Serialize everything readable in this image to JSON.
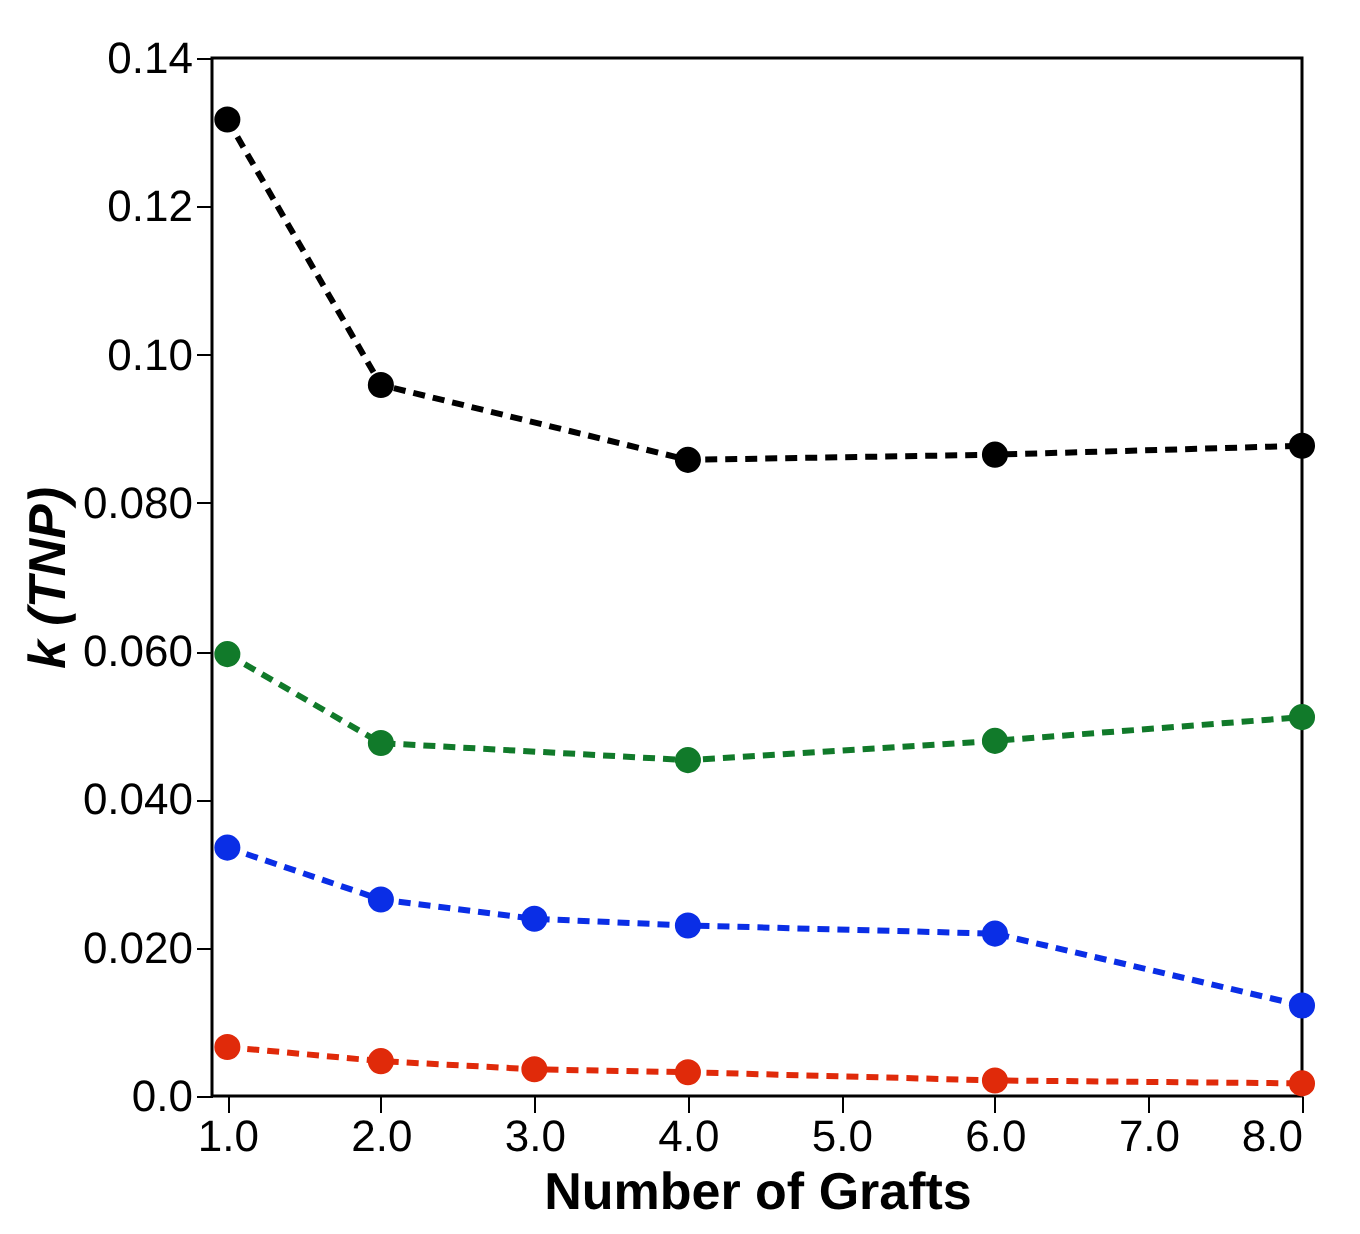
{
  "chart_data": {
    "type": "line",
    "xlabel": "Number of Grafts",
    "ylabel": "k (TNP)",
    "xlim": [
      0.9,
      8.0
    ],
    "xticks": [
      {
        "value": 1,
        "label": "1.0"
      },
      {
        "value": 2,
        "label": "2.0"
      },
      {
        "value": 3,
        "label": "3.0"
      },
      {
        "value": 4,
        "label": "4.0"
      },
      {
        "value": 5,
        "label": "5.0"
      },
      {
        "value": 6,
        "label": "6.0"
      },
      {
        "value": 7,
        "label": "7.0"
      },
      {
        "value": 8,
        "label": "8.0"
      }
    ],
    "ylim": [
      0,
      0.14
    ],
    "yticks": [
      {
        "value": 0,
        "label": "0.0"
      },
      {
        "value": 0.02,
        "label": "0.020"
      },
      {
        "value": 0.04,
        "label": "0.040"
      },
      {
        "value": 0.06,
        "label": "0.060"
      },
      {
        "value": 0.08,
        "label": "0.080"
      },
      {
        "value": 0.1,
        "label": "0.10"
      },
      {
        "value": 0.12,
        "label": "0.12"
      },
      {
        "value": 0.14,
        "label": "0.14"
      }
    ],
    "marker": "circle",
    "line_style": "dashed",
    "grid": false,
    "series": [
      {
        "color": "#000000",
        "x": [
          1,
          2,
          4,
          6,
          8
        ],
        "values": [
          0.1317,
          0.0959,
          0.0858,
          0.0865,
          0.0877
        ]
      },
      {
        "color": "#117a2a",
        "x": [
          1,
          2,
          4,
          6,
          8
        ],
        "values": [
          0.0596,
          0.0476,
          0.0453,
          0.0479,
          0.0511
        ]
      },
      {
        "color": "#0a2ee6",
        "x": [
          1,
          2,
          3,
          4,
          6,
          8
        ],
        "values": [
          0.0335,
          0.0265,
          0.0239,
          0.023,
          0.0219,
          0.0122
        ]
      },
      {
        "color": "#e02a0a",
        "x": [
          1,
          2,
          3,
          4,
          6,
          8
        ],
        "values": [
          0.0066,
          0.0047,
          0.0036,
          0.0032,
          0.0021,
          0.0017
        ]
      }
    ]
  }
}
